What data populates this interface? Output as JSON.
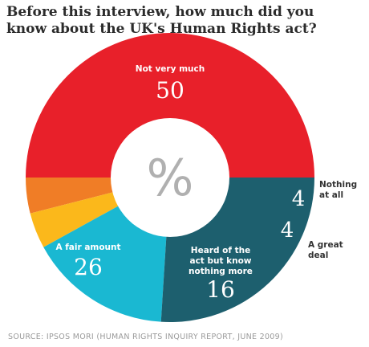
{
  "title": "Before this interview, how much did you know about the UK's Human Rights act?",
  "center_label": "%",
  "source": "SOURCE: IPSOS MORI (HUMAN RIGHTS INQUIRY REPORT, JUNE 2009)",
  "chart_data": {
    "type": "pie",
    "donut": true,
    "unit": "%",
    "title": "Before this interview, how much did you know about the UK's Human Rights act?",
    "categories": [
      "Not very much",
      "Nothing at all",
      "A great deal",
      "Heard of the act but know nothing more",
      "A fair amount"
    ],
    "values": [
      50,
      4,
      4,
      16,
      26
    ],
    "colors": [
      "#e8202a",
      "#f07d26",
      "#fbb81b",
      "#1ab8d2",
      "#1d5f6e"
    ],
    "segment_labels": [
      {
        "lines": [
          "Not very much"
        ],
        "value": "50",
        "placement": "inside"
      },
      {
        "lines": [
          "Nothing",
          "at all"
        ],
        "value": "4",
        "placement": "outside"
      },
      {
        "lines": [
          "A great",
          "deal"
        ],
        "value": "4",
        "placement": "outside"
      },
      {
        "lines": [
          "Heard of the",
          "act but know",
          "nothing more"
        ],
        "value": "16",
        "placement": "inside"
      },
      {
        "lines": [
          "A fair amount"
        ],
        "value": "26",
        "placement": "inside"
      }
    ]
  }
}
